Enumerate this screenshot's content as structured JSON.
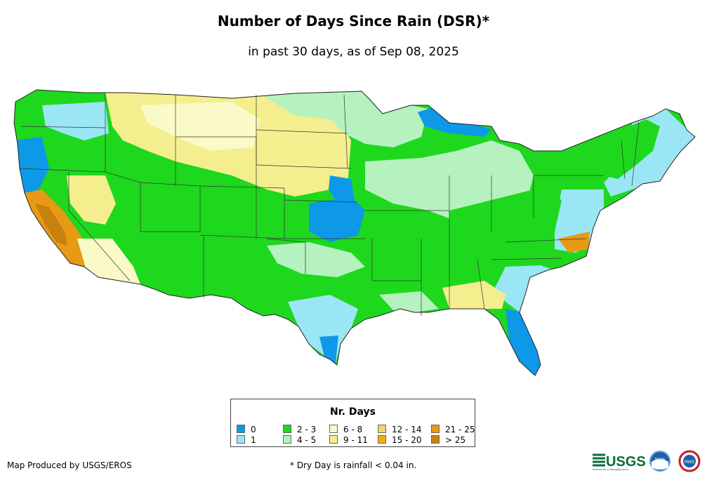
{
  "title": "Number of Days Since Rain (DSR)*",
  "subtitle": "in past 30 days, as of Sep 08, 2025",
  "legend": {
    "title": "Nr. Days",
    "items": [
      {
        "label": "0",
        "color": "#0d99e8"
      },
      {
        "label": "1",
        "color": "#9be6f5"
      },
      {
        "label": "2 - 3",
        "color": "#1ed81e"
      },
      {
        "label": "4 - 5",
        "color": "#b5f2c0"
      },
      {
        "label": "6 - 8",
        "color": "#fafac8"
      },
      {
        "label": "9 - 11",
        "color": "#f5ee8e"
      },
      {
        "label": "12 - 14",
        "color": "#f5d26a"
      },
      {
        "label": "15 - 20",
        "color": "#f0b00a"
      },
      {
        "label": "21 - 25",
        "color": "#e79a14"
      },
      {
        "label": "> 25",
        "color": "#c8800e"
      }
    ]
  },
  "credit": "Map Produced by USGS/EROS",
  "footnote": "* Dry Day is rainfall < 0.04 in.",
  "logos": {
    "usgs": "USGS",
    "usgs_tagline": "science for a changing world",
    "noaa": "NOAA",
    "nws": "NWS"
  }
}
